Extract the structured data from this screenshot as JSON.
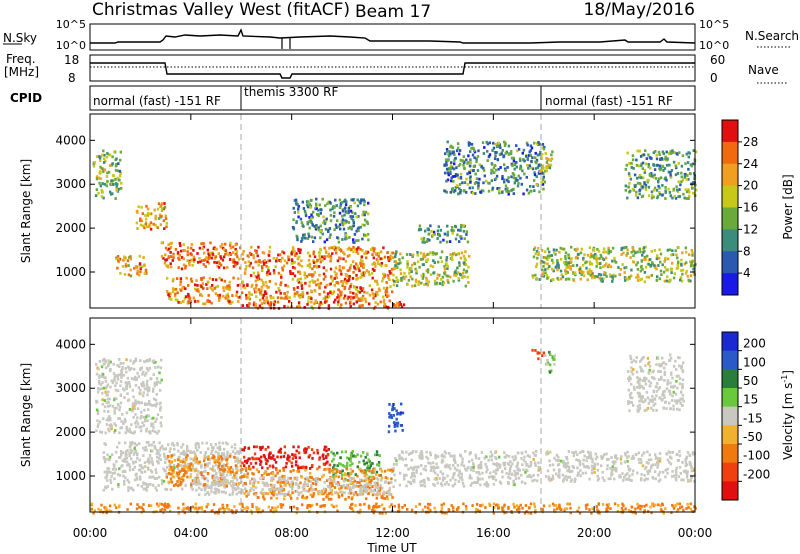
{
  "header": {
    "station": "Christmas Valley West (fitACF)",
    "beam": "Beam 17",
    "date": "18/May/2016"
  },
  "panels": {
    "nsky": {
      "label": "N.Sky",
      "tick_top": "10^5",
      "tick_bottom": "10^0"
    },
    "nsearch": {
      "label": "N.Search",
      "tick_top": "10^5",
      "tick_bottom": "10^0"
    },
    "freq": {
      "label_1": "Freq.",
      "label_2": "[MHz]",
      "tick_top": "18",
      "tick_bottom": "8"
    },
    "nave": {
      "label": "Nave",
      "tick_top": "60",
      "tick_bottom": "0"
    },
    "cpid": {
      "label": "CPID",
      "segments": [
        {
          "name": "normal (fast) -151 RF",
          "start": 0,
          "end": 6
        },
        {
          "name": "themis 3300 RF",
          "start": 6,
          "end": 18
        },
        {
          "name": "normal (fast) -151 RF",
          "start": 18,
          "end": 24
        }
      ]
    }
  },
  "x_axis": {
    "label": "Time UT",
    "ticks": [
      "00:00",
      "04:00",
      "08:00",
      "12:00",
      "16:00",
      "20:00",
      "00:00"
    ],
    "range_hours": [
      0,
      24
    ]
  },
  "y_axis": {
    "label": "Slant Range [km]",
    "ticks": [
      "1000",
      "2000",
      "3000",
      "4000"
    ],
    "range_km": [
      180,
      4600
    ]
  },
  "power_scale": {
    "label": "Power [dB]",
    "ticks": [
      "4",
      "8",
      "12",
      "16",
      "20",
      "24",
      "28"
    ],
    "colors": [
      "#1a1ae6",
      "#2a5ab0",
      "#3b8c7a",
      "#6aaa3c",
      "#c8c818",
      "#f0a020",
      "#f06a10",
      "#e01010"
    ]
  },
  "velocity_scale": {
    "label": "Velocity [m s",
    "label_sup": "-1",
    "label_end": "]",
    "ticks": [
      "200",
      "100",
      "50",
      "15",
      "-15",
      "-50",
      "-100",
      "-200"
    ],
    "colors": [
      "#1a2ad0",
      "#2a5ac8",
      "#2a7e3c",
      "#6ac83c",
      "#c8c8c0",
      "#f0b030",
      "#f07a10",
      "#f04010",
      "#e01010"
    ],
    "ground_scatter_color": "#c8c8c0"
  },
  "chart_data": {
    "type": "heatmap",
    "x_range_hours": [
      0,
      24
    ],
    "y_range_km": [
      180,
      4600
    ],
    "power_regions": [
      {
        "t": [
          0.1,
          1.2
        ],
        "r": [
          2700,
          3800
        ],
        "db": 14
      },
      {
        "t": [
          1.0,
          2.2
        ],
        "r": [
          900,
          1400
        ],
        "db": 22
      },
      {
        "t": [
          1.8,
          3.0
        ],
        "r": [
          2000,
          2600
        ],
        "db": 22
      },
      {
        "t": [
          2.8,
          6.0
        ],
        "r": [
          1100,
          1700
        ],
        "db": 26
      },
      {
        "t": [
          3.0,
          6.0
        ],
        "r": [
          300,
          900
        ],
        "db": 24
      },
      {
        "t": [
          6.0,
          12.0
        ],
        "r": [
          400,
          1600
        ],
        "db": 24
      },
      {
        "t": [
          6.0,
          12.5
        ],
        "r": [
          200,
          400
        ],
        "db": 26
      },
      {
        "t": [
          8.0,
          11.0
        ],
        "r": [
          1700,
          2700
        ],
        "db": 10
      },
      {
        "t": [
          12.0,
          15.0
        ],
        "r": [
          700,
          1500
        ],
        "db": 16
      },
      {
        "t": [
          13.0,
          15.0
        ],
        "r": [
          1700,
          2100
        ],
        "db": 10
      },
      {
        "t": [
          14.0,
          18.0
        ],
        "r": [
          2800,
          4000
        ],
        "db": 10
      },
      {
        "t": [
          17.5,
          24.0
        ],
        "r": [
          800,
          1600
        ],
        "db": 16
      },
      {
        "t": [
          17.8,
          18.4
        ],
        "r": [
          3300,
          3800
        ],
        "db": 18
      },
      {
        "t": [
          21.2,
          24.0
        ],
        "r": [
          2700,
          3800
        ],
        "db": 12
      }
    ],
    "velocity_regions": [
      {
        "t": [
          0.2,
          2.8
        ],
        "r": [
          2000,
          3700
        ],
        "v": 0,
        "gs": true
      },
      {
        "t": [
          0.5,
          6.0
        ],
        "r": [
          700,
          1800
        ],
        "v": 0,
        "gs": true
      },
      {
        "t": [
          3.0,
          6.0
        ],
        "r": [
          800,
          1500
        ],
        "v": -60
      },
      {
        "t": [
          6.0,
          9.5
        ],
        "r": [
          1200,
          1700
        ],
        "v": -210
      },
      {
        "t": [
          9.5,
          11.5
        ],
        "r": [
          1000,
          1600
        ],
        "v": 40
      },
      {
        "t": [
          6.0,
          12.0
        ],
        "r": [
          500,
          1200
        ],
        "v": -60
      },
      {
        "t": [
          4.0,
          12.0
        ],
        "r": [
          600,
          1000
        ],
        "v": 0,
        "gs": true
      },
      {
        "t": [
          11.8,
          12.4
        ],
        "r": [
          2000,
          2700
        ],
        "v": 180
      },
      {
        "t": [
          12.0,
          17.8
        ],
        "r": [
          800,
          1600
        ],
        "v": 0,
        "gs": true
      },
      {
        "t": [
          18.0,
          24.0
        ],
        "r": [
          900,
          1600
        ],
        "v": 0,
        "gs": true
      },
      {
        "t": [
          18.0,
          18.4
        ],
        "r": [
          3300,
          3900
        ],
        "v": 30
      },
      {
        "t": [
          17.5,
          18.0
        ],
        "r": [
          3700,
          3900
        ],
        "v": -160
      },
      {
        "t": [
          21.3,
          23.5
        ],
        "r": [
          2500,
          3800
        ],
        "v": 0,
        "gs": true
      },
      {
        "t": [
          0.0,
          24.0
        ],
        "r": [
          180,
          400
        ],
        "v": -60
      }
    ]
  }
}
